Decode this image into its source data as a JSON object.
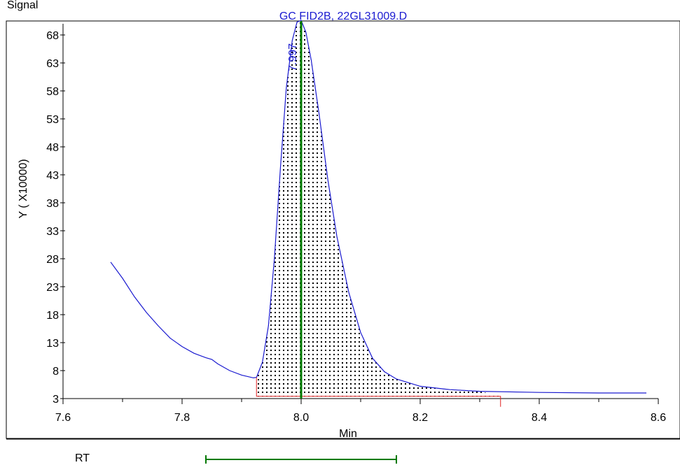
{
  "top_label": "Signal",
  "chart_data": {
    "type": "line",
    "title": "GC FID2B, 22GL31009.D",
    "xlabel": "Min",
    "ylabel": "Y ( X10000)",
    "xlim": [
      7.6,
      8.6
    ],
    "ylim": [
      3,
      70
    ],
    "x_ticks": [
      7.6,
      7.8,
      8.0,
      8.2,
      8.4,
      8.6
    ],
    "x_tick_labels": [
      "7.6",
      "7.8",
      "8.0",
      "8.2",
      "8.4",
      "8.6"
    ],
    "y_ticks": [
      3,
      8,
      13,
      18,
      23,
      28,
      33,
      38,
      43,
      48,
      53,
      58,
      63,
      68
    ],
    "y_tick_labels": [
      "3",
      "8",
      "13",
      "18",
      "23",
      "28",
      "33",
      "38",
      "43",
      "48",
      "53",
      "58",
      "63",
      "68"
    ],
    "series": [
      {
        "color": "#1a1ad0",
        "x": [
          7.68,
          7.7,
          7.72,
          7.74,
          7.76,
          7.78,
          7.8,
          7.82,
          7.84,
          7.85,
          7.86,
          7.88,
          7.9,
          7.92,
          7.925,
          7.935,
          7.945,
          7.955,
          7.965,
          7.975,
          7.985,
          7.993,
          8.0,
          8.008,
          8.017,
          8.03,
          8.045,
          8.06,
          8.08,
          8.1,
          8.12,
          8.14,
          8.16,
          8.2,
          8.25,
          8.3,
          8.4,
          8.5,
          8.58
        ],
        "y": [
          27.4,
          24.5,
          21.2,
          18.4,
          16.0,
          13.8,
          12.3,
          11.1,
          10.3,
          10.0,
          9.2,
          8.0,
          7.2,
          6.7,
          6.8,
          9.5,
          16.0,
          28.0,
          44.0,
          58.5,
          67.0,
          70.3,
          70.6,
          68.5,
          63.5,
          54.0,
          42.0,
          32.0,
          22.0,
          14.8,
          10.2,
          7.8,
          6.5,
          5.2,
          4.6,
          4.3,
          4.1,
          4.0,
          4.0
        ]
      }
    ],
    "peak": {
      "label": "7.997",
      "rt": 7.997,
      "start": 7.925,
      "end": 8.335,
      "baseline_y": 3.4,
      "marker_color": "#007a00",
      "baseline_color": "#e02020"
    },
    "rt_panel": {
      "label": "RT",
      "range": [
        7.84,
        8.16
      ],
      "color": "#007a00"
    }
  }
}
